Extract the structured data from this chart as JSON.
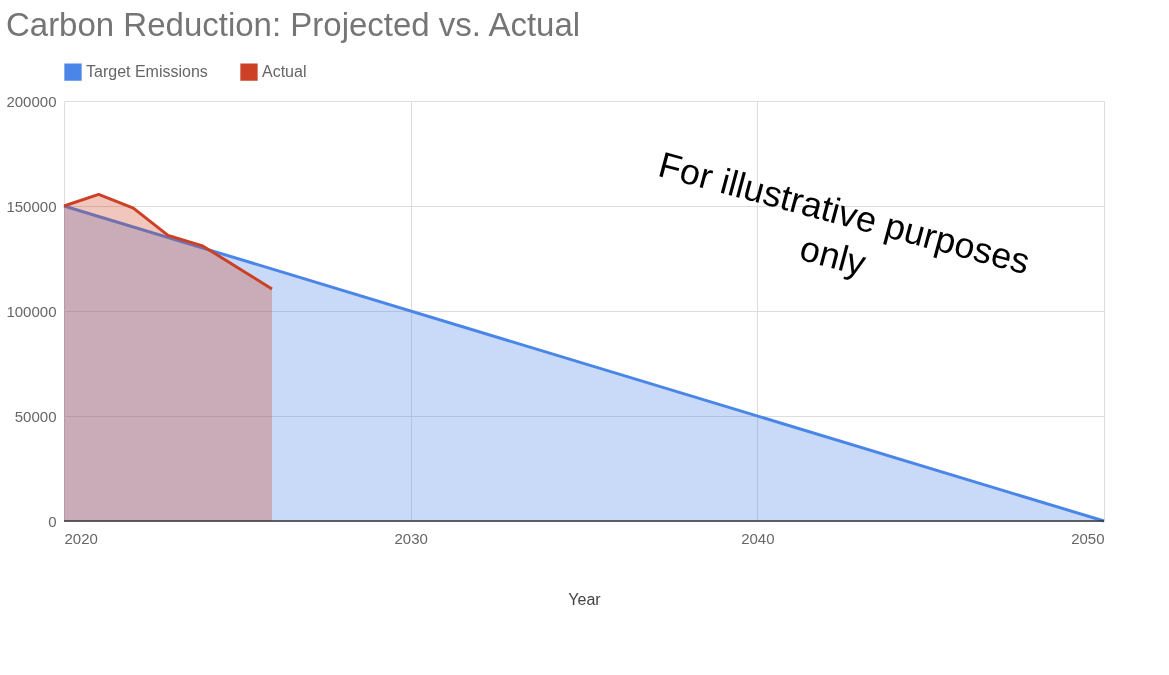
{
  "chart_data": {
    "type": "area",
    "title": "Carbon Reduction: Projected vs. Actual",
    "xlabel": "Year",
    "series": [
      {
        "name": "Target Emissions",
        "color": "#4a86e8",
        "x": [
          2020,
          2050
        ],
        "values": [
          150000,
          0
        ]
      },
      {
        "name": "Actual",
        "color": "#cc4125",
        "x": [
          2020,
          2021,
          2022,
          2023,
          2024,
          2026
        ],
        "values": [
          150000,
          155500,
          149000,
          136000,
          131000,
          110500
        ]
      }
    ],
    "xlim": [
      2020,
      2050
    ],
    "xticks": [
      2020,
      2030,
      2040,
      2050
    ],
    "ylim": [
      0,
      200000
    ],
    "yticks": [
      0,
      50000,
      100000,
      150000,
      200000
    ],
    "grid": true,
    "legend": "top",
    "annotations": [
      "For illustrative purposes only"
    ]
  }
}
